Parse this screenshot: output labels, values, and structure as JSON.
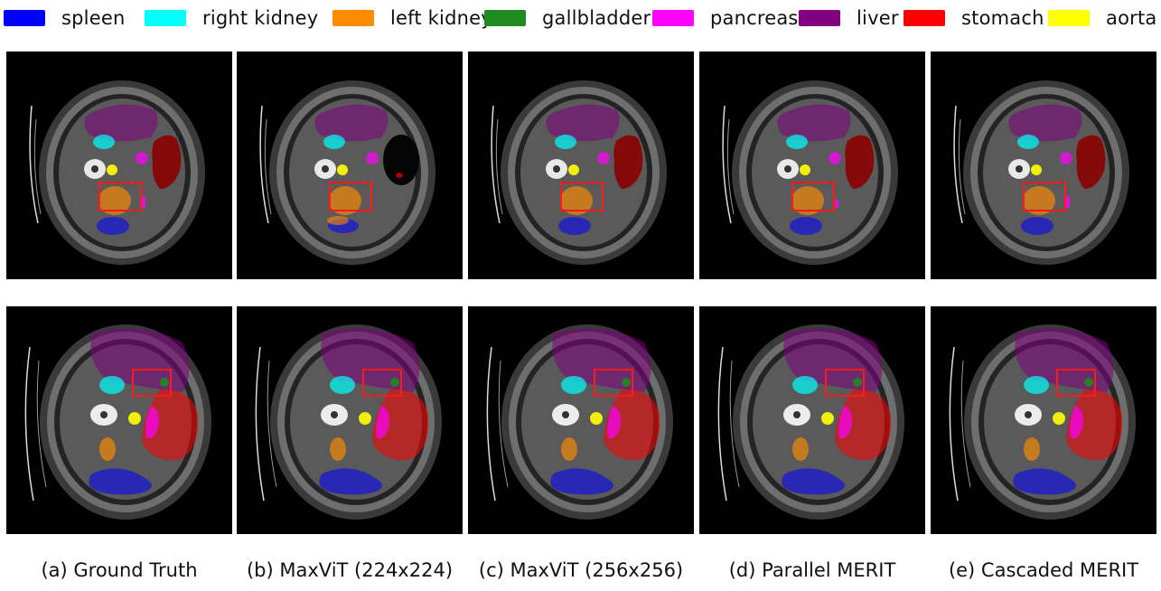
{
  "legend": [
    {
      "label": "spleen",
      "color": "#0000ff"
    },
    {
      "label": "right kidney",
      "color": "#00ffff"
    },
    {
      "label": "left kidney",
      "color": "#ff8c00"
    },
    {
      "label": "gallbladder",
      "color": "#1f8a1f"
    },
    {
      "label": "pancreas",
      "color": "#ff00ff"
    },
    {
      "label": "liver",
      "color": "#800080"
    },
    {
      "label": "stomach",
      "color": "#ff0000"
    },
    {
      "label": "aorta",
      "color": "#ffff00"
    }
  ],
  "captions": [
    "(a)  Ground Truth",
    "(b) MaxViT (224x224)",
    "(c) MaxViT (256x256)",
    "(d) Parallel MERIT",
    "(e) Cascaded MERIT"
  ],
  "rows": [
    {
      "slice": "upper",
      "panels": [
        "ground-truth",
        "maxvit-224",
        "maxvit-256",
        "parallel-merit",
        "cascaded-merit"
      ]
    },
    {
      "slice": "lower",
      "panels": [
        "ground-truth",
        "maxvit-224",
        "maxvit-256",
        "parallel-merit",
        "cascaded-merit"
      ]
    }
  ]
}
